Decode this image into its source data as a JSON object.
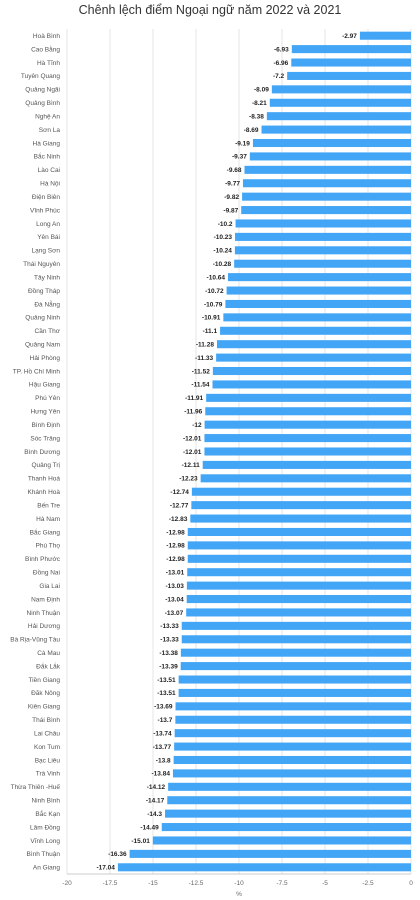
{
  "chart_data": {
    "type": "bar",
    "orientation": "horizontal",
    "title": "Chênh lệch điểm Ngoại ngữ năm 2022 và 2021",
    "xlabel": "%",
    "xlim": [
      -20,
      0
    ],
    "xticks": [
      -20,
      -17.5,
      -15,
      -12.5,
      -10,
      -7.5,
      -5,
      -2.5,
      0
    ],
    "grid": true,
    "bar_color": "#42a5f5",
    "categories": [
      "Hoà Bình",
      "Cao Bằng",
      "Hà Tĩnh",
      "Tuyên Quang",
      "Quảng Ngãi",
      "Quảng Bình",
      "Nghệ An",
      "Sơn La",
      "Hà Giang",
      "Bắc Ninh",
      "Lào Cai",
      "Hà Nội",
      "Điện Biên",
      "Vĩnh Phúc",
      "Long An",
      "Yên Bái",
      "Lạng Sơn",
      "Thái Nguyên",
      "Tây Ninh",
      "Đồng Tháp",
      "Đà Nẵng",
      "Quảng Ninh",
      "Cần Thơ",
      "Quảng Nam",
      "Hải Phòng",
      "TP. Hồ Chí Minh",
      "Hậu Giang",
      "Phú Yên",
      "Hưng Yên",
      "Bình Định",
      "Sóc Trăng",
      "Bình Dương",
      "Quảng Trị",
      "Thanh Hoá",
      "Khánh Hoà",
      "Bến Tre",
      "Hà Nam",
      "Bắc Giang",
      "Phú Thọ",
      "Bình Phước",
      "Đồng Nai",
      "Gia Lai",
      "Nam Định",
      "Ninh Thuận",
      "Hải Dương",
      "Bà Rịa-Vũng Tàu",
      "Cà Mau",
      "Đắk Lắk",
      "Tiền Giang",
      "Đăk Nông",
      "Kiên Giang",
      "Thái Bình",
      "Lai Châu",
      "Kon Tum",
      "Bạc Liêu",
      "Trà Vinh",
      "Thừa Thiên -Huế",
      "Ninh Bình",
      "Bắc Kạn",
      "Lâm Đồng",
      "Vĩnh Long",
      "Bình Thuận",
      "An Giang"
    ],
    "values": [
      -2.97,
      -6.93,
      -6.96,
      -7.2,
      -8.09,
      -8.21,
      -8.38,
      -8.69,
      -9.19,
      -9.37,
      -9.68,
      -9.77,
      -9.82,
      -9.87,
      -10.2,
      -10.23,
      -10.24,
      -10.28,
      -10.64,
      -10.72,
      -10.79,
      -10.91,
      -11.1,
      -11.28,
      -11.33,
      -11.52,
      -11.54,
      -11.91,
      -11.96,
      -12,
      -12.01,
      -12.01,
      -12.11,
      -12.23,
      -12.74,
      -12.77,
      -12.83,
      -12.98,
      -12.98,
      -12.98,
      -13.01,
      -13.03,
      -13.04,
      -13.07,
      -13.33,
      -13.33,
      -13.38,
      -13.39,
      -13.51,
      -13.51,
      -13.69,
      -13.7,
      -13.74,
      -13.77,
      -13.8,
      -13.84,
      -14.12,
      -14.17,
      -14.3,
      -14.49,
      -15.01,
      -16.36,
      -17.04
    ],
    "value_labels": [
      "-2.97",
      "-6.93",
      "-6.96",
      "-7.2",
      "-8.09",
      "-8.21",
      "-8.38",
      "-8.69",
      "-9.19",
      "-9.37",
      "-9.68",
      "-9.77",
      "-9.82",
      "-9.87",
      "-10.2",
      "-10.23",
      "-10.24",
      "-10.28",
      "-10.64",
      "-10.72",
      "-10.79",
      "-10.91",
      "-11.1",
      "-11.28",
      "-11.33",
      "-11.52",
      "-11.54",
      "-11.91",
      "-11.96",
      "-12",
      "-12.01",
      "-12.01",
      "-12.11",
      "-12.23",
      "-12.74",
      "-12.77",
      "-12.83",
      "-12.98",
      "-12.98",
      "-12.98",
      "-13.01",
      "-13.03",
      "-13.04",
      "-13.07",
      "-13.33",
      "-13.33",
      "-13.38",
      "-13.39",
      "-13.51",
      "-13.51",
      "-13.69",
      "-13.7",
      "-13.74",
      "-13.77",
      "-13.8",
      "-13.84",
      "-14.12",
      "-14.17",
      "-14.3",
      "-14.49",
      "-15.01",
      "-16.36",
      "-17.04"
    ]
  }
}
